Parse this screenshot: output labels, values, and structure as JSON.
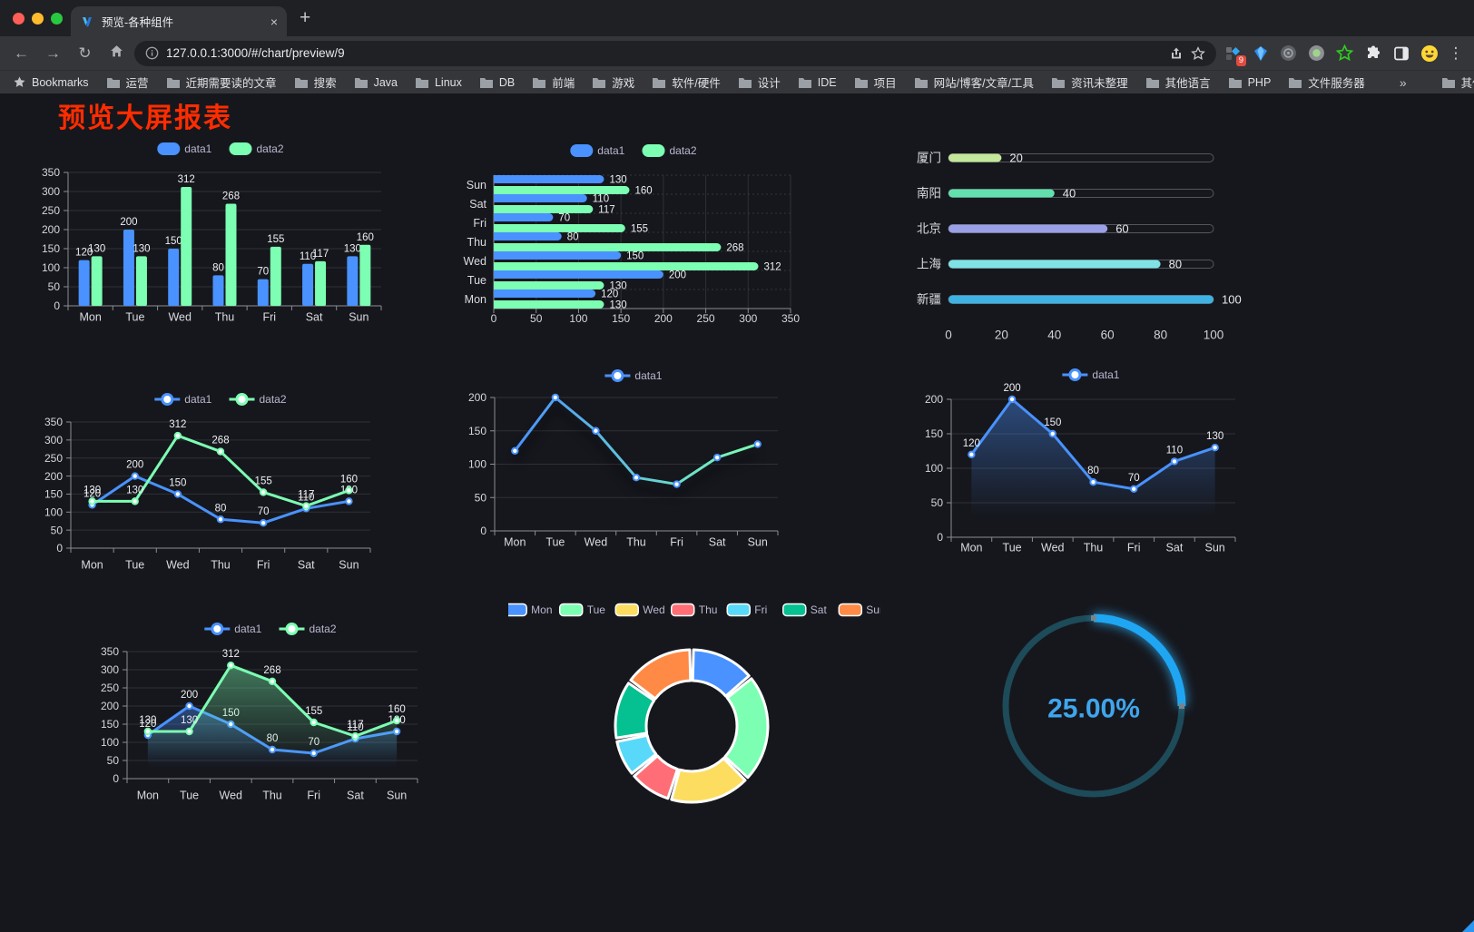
{
  "browser": {
    "window_controls": {
      "close_color": "#ff5f57",
      "minimize_color": "#febc2e",
      "zoom_color": "#28c840"
    },
    "tab": {
      "title": "预览-各种组件",
      "close_glyph": "×",
      "new_tab_glyph": "+"
    },
    "nav": {
      "back": "←",
      "forward": "→",
      "reload": "↻"
    },
    "address": {
      "url": "127.0.0.1:3000/#/chart/preview/9"
    },
    "extensions_badge": "9",
    "menu_glyph": "⋮",
    "bookmarks_bar": {
      "manager_label": "Bookmarks",
      "folders": [
        "运营",
        "近期需要读的文章",
        "搜索",
        "Java",
        "Linux",
        "DB",
        "前端",
        "游戏",
        "软件/硬件",
        "设计",
        "IDE",
        "项目",
        "网站/博客/文章/工具",
        "资讯未整理",
        "其他语言",
        "PHP",
        "文件服务器"
      ],
      "overflow_glyph": "»",
      "other_bookmarks": "其他书签"
    }
  },
  "page": {
    "title": "预览大屏报表",
    "title_color": "#fe2c00",
    "background": "#16171d"
  },
  "chart_data": [
    {
      "id": "c1",
      "name": "grouped-bar-chart",
      "type": "bar",
      "categories": [
        "Mon",
        "Tue",
        "Wed",
        "Thu",
        "Fri",
        "Sat",
        "Sun"
      ],
      "series": [
        {
          "name": "data1",
          "color": "#4992ff",
          "values": [
            120,
            200,
            150,
            80,
            70,
            110,
            130
          ]
        },
        {
          "name": "data2",
          "color": "#7cffb2",
          "values": [
            130,
            130,
            312,
            268,
            155,
            117,
            160
          ]
        }
      ],
      "ylim": [
        0,
        350
      ],
      "ystep": 50,
      "show_labels": true,
      "legend_position": "top",
      "grid": true
    },
    {
      "id": "c2",
      "name": "horizontal-bar-chart",
      "type": "bar-h",
      "categories": [
        "Mon",
        "Tue",
        "Wed",
        "Thu",
        "Fri",
        "Sat",
        "Sun"
      ],
      "series": [
        {
          "name": "data1",
          "color": "#4992ff",
          "values": [
            120,
            200,
            150,
            80,
            70,
            110,
            130
          ]
        },
        {
          "name": "data2",
          "color": "#7cffb2",
          "values": [
            130,
            130,
            312,
            268,
            155,
            117,
            160
          ]
        }
      ],
      "xlim": [
        0,
        350
      ],
      "xstep": 50,
      "show_labels": true,
      "legend_position": "top",
      "grid": true
    },
    {
      "id": "c3",
      "name": "city-progress-bars",
      "type": "progress",
      "items": [
        {
          "label": "厦门",
          "value": 20,
          "color": "#c3e79b"
        },
        {
          "label": "南阳",
          "value": 40,
          "color": "#63dfae"
        },
        {
          "label": "北京",
          "value": 60,
          "color": "#9aa0e5"
        },
        {
          "label": "上海",
          "value": 80,
          "color": "#7fe3e6"
        },
        {
          "label": "新疆",
          "value": 100,
          "color": "#3fb1e3"
        }
      ],
      "xlim": [
        0,
        100
      ],
      "xticks": [
        0,
        20,
        40,
        60,
        80,
        100
      ]
    },
    {
      "id": "c4",
      "name": "two-series-line-chart",
      "type": "line",
      "categories": [
        "Mon",
        "Tue",
        "Wed",
        "Thu",
        "Fri",
        "Sat",
        "Sun"
      ],
      "series": [
        {
          "name": "data1",
          "color": "#4992ff",
          "values": [
            120,
            200,
            150,
            80,
            70,
            110,
            130
          ]
        },
        {
          "name": "data2",
          "color": "#7cffb2",
          "values": [
            130,
            130,
            312,
            268,
            155,
            117,
            160
          ]
        }
      ],
      "ylim": [
        0,
        350
      ],
      "ystep": 50,
      "show_labels": true,
      "legend_position": "top",
      "grid": true
    },
    {
      "id": "c5",
      "name": "gradient-line-chart",
      "type": "line",
      "categories": [
        "Mon",
        "Tue",
        "Wed",
        "Thu",
        "Fri",
        "Sat",
        "Sun"
      ],
      "series": [
        {
          "name": "data1",
          "color": "#4992ff",
          "gradient_end": "#7cffb2",
          "shadow": true,
          "values": [
            120,
            200,
            150,
            80,
            70,
            110,
            130
          ]
        }
      ],
      "ylim": [
        0,
        200
      ],
      "ystep": 50,
      "show_labels": false,
      "legend_position": "top",
      "grid": true
    },
    {
      "id": "c6",
      "name": "area-line-chart",
      "type": "line",
      "categories": [
        "Mon",
        "Tue",
        "Wed",
        "Thu",
        "Fri",
        "Sat",
        "Sun"
      ],
      "series": [
        {
          "name": "data1",
          "color": "#4992ff",
          "area": true,
          "values": [
            120,
            200,
            150,
            80,
            70,
            110,
            130
          ]
        }
      ],
      "ylim": [
        0,
        200
      ],
      "ystep": 50,
      "show_labels": true,
      "legend_position": "top",
      "grid": true
    },
    {
      "id": "c7",
      "name": "two-series-area-chart",
      "type": "line",
      "categories": [
        "Mon",
        "Tue",
        "Wed",
        "Thu",
        "Fri",
        "Sat",
        "Sun"
      ],
      "series": [
        {
          "name": "data1",
          "color": "#4992ff",
          "area": true,
          "values": [
            120,
            200,
            150,
            80,
            70,
            110,
            130
          ]
        },
        {
          "name": "data2",
          "color": "#7cffb2",
          "area": true,
          "values": [
            130,
            130,
            312,
            268,
            155,
            117,
            160
          ]
        }
      ],
      "ylim": [
        0,
        350
      ],
      "ystep": 50,
      "show_labels": true,
      "legend_position": "top",
      "grid": true
    },
    {
      "id": "c8",
      "name": "donut-chart",
      "type": "pie",
      "donut": true,
      "legend_position": "top",
      "items": [
        {
          "label": "Mon",
          "value": 120,
          "color": "#4992ff"
        },
        {
          "label": "Tue",
          "value": 200,
          "color": "#7cffb2"
        },
        {
          "label": "Wed",
          "value": 150,
          "color": "#fddd60"
        },
        {
          "label": "Thu",
          "value": 80,
          "color": "#ff6e76"
        },
        {
          "label": "Fri",
          "value": 70,
          "color": "#58d9f9"
        },
        {
          "label": "Sat",
          "value": 110,
          "color": "#05c091"
        },
        {
          "label": "Sun",
          "value": 130,
          "color": "#ff8a45"
        }
      ]
    },
    {
      "id": "c9",
      "name": "gauge-progress-ring",
      "type": "gauge",
      "value": 25,
      "display": "25.00%",
      "color": "#1fa6f2",
      "track_color": "#1d4b59",
      "text_color": "#3fa5ec"
    }
  ]
}
